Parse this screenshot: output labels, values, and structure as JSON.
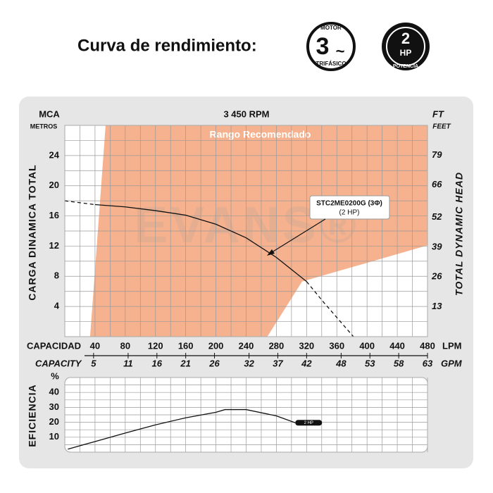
{
  "header": {
    "title": "Curva de rendimiento:",
    "badges": [
      {
        "top": "MOTOR",
        "main": "3",
        "symbol": "~",
        "bottom": "TRIFÁSICO"
      },
      {
        "main": "2",
        "symbol": "HP",
        "bottom": "POTENCIA"
      }
    ]
  },
  "chart_data": [
    {
      "type": "line",
      "title": "3 450 RPM",
      "watermark": "EVANS®",
      "y_label": "CARGA  DINAMICA  TOTAL",
      "y_unit": "MCA",
      "y_unit_sub": "METROS",
      "y2_label": "TOTAL  DYNAMIC  HEAD",
      "y2_unit": "FT",
      "y2_unit_sub": "FEET",
      "x_label": "CAPACIDAD",
      "x_unit": "LPM",
      "x2_label": "CAPACITY",
      "x2_unit": "GPM",
      "xlim": [
        0,
        480
      ],
      "xticks": [
        40,
        80,
        120,
        160,
        200,
        240,
        280,
        320,
        360,
        400,
        440,
        480
      ],
      "minor_xticks": [
        20,
        60,
        100,
        140,
        180,
        220,
        260,
        300,
        340,
        380,
        420,
        460
      ],
      "ylim": [
        0,
        28
      ],
      "yticks": [
        4,
        8,
        12,
        16,
        20,
        24
      ],
      "minor_yticks": [
        2,
        6,
        10,
        14,
        18,
        22,
        26
      ],
      "y2lim": [
        0,
        92
      ],
      "y2ticks": [
        13,
        26,
        39,
        52,
        66,
        79
      ],
      "x2lim": [
        0,
        63
      ],
      "x2ticks": [
        5,
        11,
        16,
        21,
        26,
        32,
        37,
        42,
        48,
        53,
        58,
        63
      ],
      "grid": true,
      "range": {
        "label": "Rango Recomendado",
        "color": "#f4a57a",
        "x": [
          33.5,
          54,
          480,
          480,
          314,
          268
        ],
        "y": [
          0,
          28,
          28,
          12.1,
          7.3,
          0
        ]
      },
      "series": [
        {
          "name": "STC2ME0200G (3Φ)",
          "annotation": "(2 HP)",
          "color": "#111111",
          "solid_xrange": [
            40,
            320
          ],
          "x": [
            0,
            40,
            80,
            120,
            160,
            200,
            240,
            280,
            320,
            343,
            382
          ],
          "values": [
            18.0,
            17.5,
            17.2,
            16.7,
            16.1,
            14.9,
            13.1,
            10.5,
            7.3,
            4.5,
            0
          ]
        }
      ]
    },
    {
      "type": "line",
      "y_label": "EFICIENCIA",
      "y_unit": "%",
      "xlim": [
        0,
        480
      ],
      "xticks": [
        40,
        80,
        120,
        160,
        200,
        240,
        280,
        320,
        360,
        400,
        440,
        480
      ],
      "minor_xticks": [
        20,
        60,
        100,
        140,
        180,
        220,
        260,
        300,
        340,
        380,
        420,
        460
      ],
      "ylim": [
        0,
        50
      ],
      "yticks": [
        10,
        20,
        30,
        40
      ],
      "minor_yticks": [
        5,
        15,
        25,
        35,
        45
      ],
      "grid": true,
      "series": [
        {
          "name": "2 HP",
          "color": "#111111",
          "x": [
            4,
            80,
            120,
            160,
            200,
            212,
            240,
            280,
            305
          ],
          "values": [
            2,
            12.8,
            18.3,
            23,
            26.7,
            28.5,
            28.5,
            24.3,
            19.7
          ]
        }
      ]
    }
  ]
}
